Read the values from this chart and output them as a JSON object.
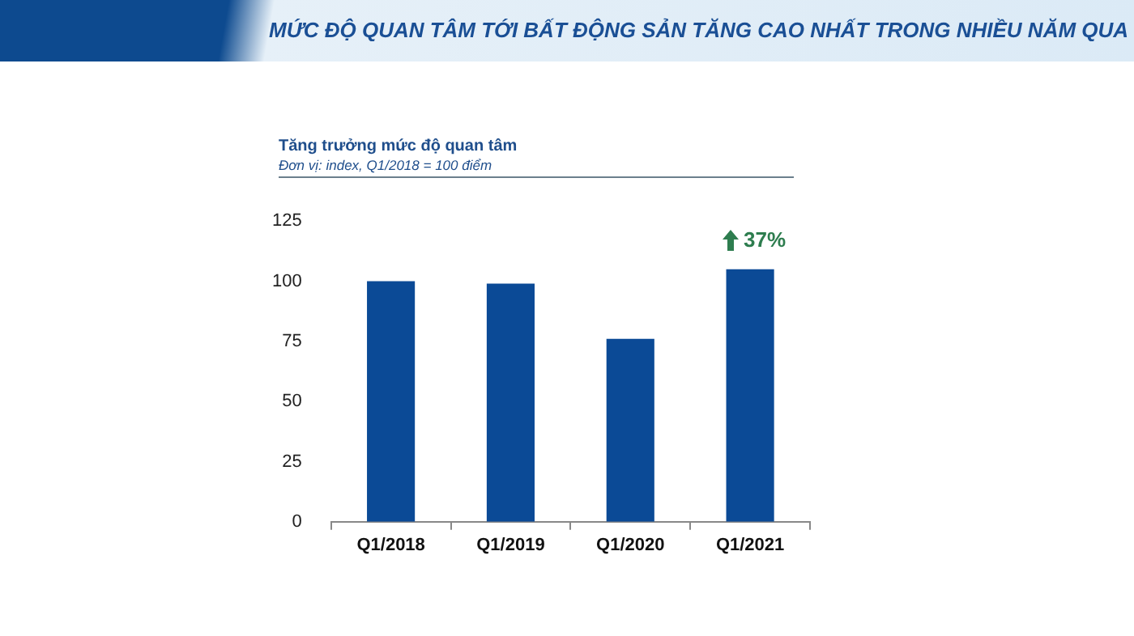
{
  "chart_data": {
    "type": "bar",
    "title": "MỨC ĐỘ QUAN TÂM TỚI BẤT ĐỘNG SẢN TĂNG CAO NHẤT TRONG NHIỀU NĂM QUA",
    "subtitle": "Tăng trưởng mức độ quan tâm",
    "annotations": [
      "Đơn vị: index, Q1/2018 = 100 điểm",
      "37%"
    ],
    "categories": [
      "Q1/2018",
      "Q1/2019",
      "Q1/2020",
      "Q1/2021"
    ],
    "values": [
      100,
      99,
      76,
      105
    ],
    "color": "#0b4a96",
    "ylim": [
      0,
      125
    ],
    "yticks": [
      0,
      25,
      50,
      75,
      100,
      125
    ],
    "grid": false
  }
}
